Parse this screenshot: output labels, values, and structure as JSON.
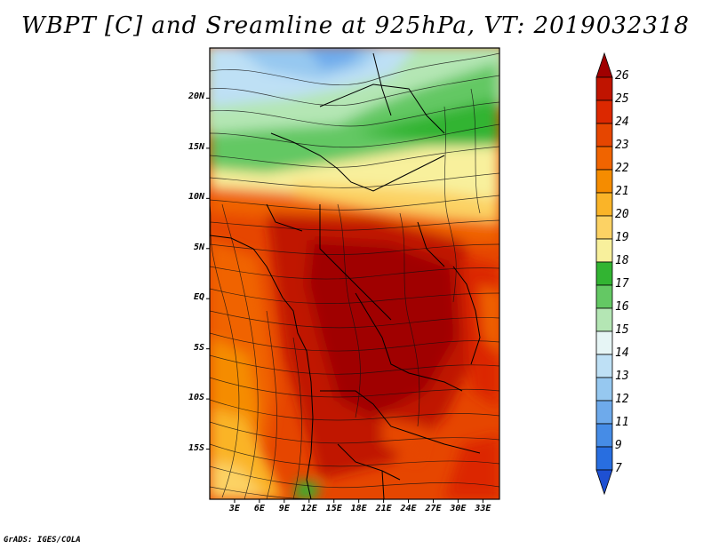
{
  "title": "WBPT [C] and Sreamline at 925hPa, VT: 2019032318",
  "credit": "GrADS: IGES/COLA",
  "map": {
    "variable": "Wet-bulb potential temperature",
    "units": "C",
    "level": "925hPa",
    "valid_time": "2019032318",
    "lon_range": [
      0,
      35
    ],
    "lat_range": [
      -20,
      25
    ],
    "lat_labels": [
      {
        "value": 20,
        "label": "20N"
      },
      {
        "value": 15,
        "label": "15N"
      },
      {
        "value": 10,
        "label": "10N"
      },
      {
        "value": 5,
        "label": "5N"
      },
      {
        "value": 0,
        "label": "EQ"
      },
      {
        "value": -5,
        "label": "5S"
      },
      {
        "value": -10,
        "label": "10S"
      },
      {
        "value": -15,
        "label": "15S"
      }
    ],
    "lon_labels": [
      {
        "value": 3,
        "label": "3E"
      },
      {
        "value": 6,
        "label": "6E"
      },
      {
        "value": 9,
        "label": "9E"
      },
      {
        "value": 12,
        "label": "12E"
      },
      {
        "value": 15,
        "label": "15E"
      },
      {
        "value": 18,
        "label": "18E"
      },
      {
        "value": 21,
        "label": "21E"
      },
      {
        "value": 24,
        "label": "24E"
      },
      {
        "value": 27,
        "label": "27E"
      },
      {
        "value": 30,
        "label": "30E"
      },
      {
        "value": 33,
        "label": "33E"
      }
    ]
  },
  "colorbar": {
    "levels": [
      "26",
      "25",
      "24",
      "23",
      "22",
      "21",
      "20",
      "19",
      "18",
      "17",
      "16",
      "15",
      "14",
      "13",
      "12",
      "11",
      "9",
      "7"
    ],
    "colors": [
      "#a00000",
      "#c01400",
      "#dc2800",
      "#e64600",
      "#f06400",
      "#f58c00",
      "#fab428",
      "#fcd264",
      "#f8f09c",
      "#32b432",
      "#64c864",
      "#b4e6b4",
      "#e6f5f5",
      "#bee0f5",
      "#96c8f0",
      "#6eaaeb",
      "#468ce6",
      "#286ee0",
      "#1e50d2"
    ]
  }
}
